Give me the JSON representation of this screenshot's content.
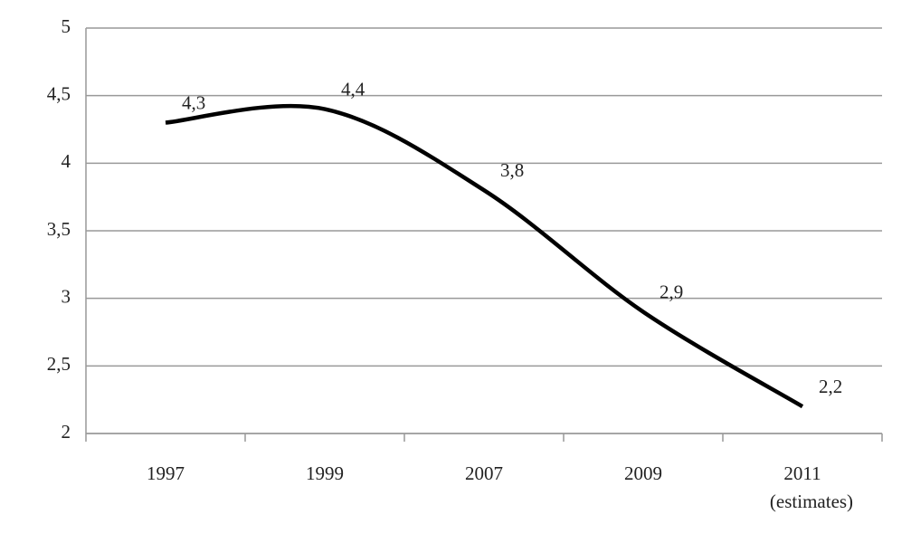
{
  "chart_data": {
    "type": "line",
    "categories": [
      "1997",
      "1999",
      "2007",
      "2009",
      "2011"
    ],
    "category_notes": [
      null,
      null,
      null,
      null,
      "(estimates)"
    ],
    "series": [
      {
        "color": "#000000",
        "values": [
          4.3,
          4.4,
          3.8,
          2.9,
          2.2
        ],
        "value_labels": [
          "4,3",
          "4,4",
          "3,8",
          "2,9",
          "2,2"
        ]
      }
    ],
    "ylim": [
      2,
      5
    ],
    "yticks": [
      2,
      {
        "value": 2.5,
        "label": "2,5"
      },
      3,
      {
        "value": 3.5,
        "label": "3,5"
      },
      4,
      {
        "value": 4.5,
        "label": "4,5"
      },
      5
    ],
    "grid": true
  }
}
